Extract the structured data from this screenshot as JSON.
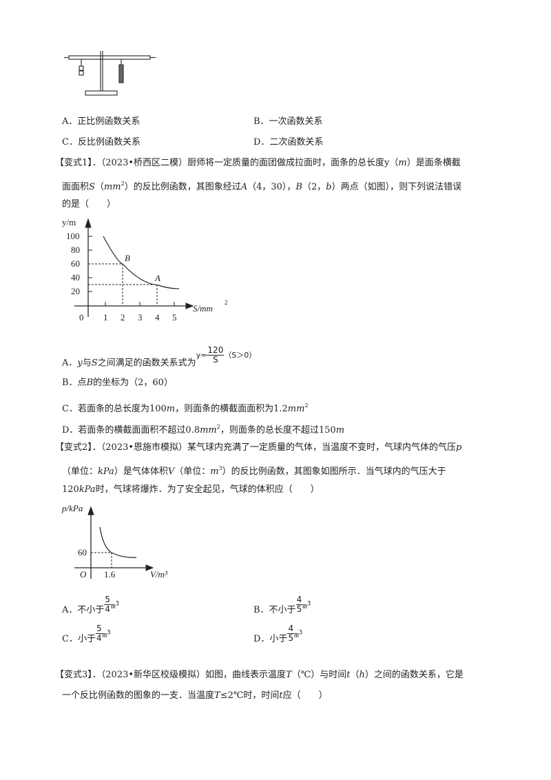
{
  "q0": {
    "options": [
      [
        [
          "A．正比例函数关系",
          ""
        ]
      ],
      [
        [
          "B．一次函数关系",
          ""
        ]
      ],
      [
        [
          "C．反比例函数关系",
          ""
        ]
      ],
      [
        [
          "D．二次函数关系",
          ""
        ]
      ]
    ]
  },
  "q1": {
    "lines": [
      [
        [
          "【变式1】．（2023•桥西区二模）厨师将一定质量的面团做成拉面时，面条的总长度",
          ""
        ],
        [
          "y",
          ""
        ],
        [
          "（",
          ""
        ],
        [
          "m",
          "i"
        ],
        [
          "）是面条横截",
          ""
        ]
      ],
      [
        [
          "面面积",
          ""
        ],
        [
          "S",
          "i"
        ],
        [
          "（",
          ""
        ],
        [
          "mm",
          "i"
        ],
        [
          "2",
          "sup"
        ],
        [
          "）的反比例函数，其图象经过",
          ""
        ],
        [
          "A",
          "i"
        ],
        [
          "（4，30），",
          ""
        ],
        [
          "B",
          "i"
        ],
        [
          "（2，",
          ""
        ],
        [
          "b",
          "i"
        ],
        [
          "）两点（如图），则下列说法错误",
          ""
        ]
      ],
      [
        [
          "的是（　　）",
          ""
        ]
      ]
    ],
    "options": [
      [
        [
          "A．",
          ""
        ],
        [
          "y",
          "i"
        ],
        [
          "与",
          ""
        ],
        [
          "S",
          "i"
        ],
        [
          "之间满足的函数关系式为",
          ""
        ]
      ],
      [
        [
          "B．点",
          ""
        ],
        [
          "B",
          "i"
        ],
        [
          "的坐标为（2，60）",
          ""
        ]
      ],
      [
        [
          "C．若面条的总长度为100",
          ""
        ],
        [
          "m",
          "i"
        ],
        [
          "，则面条的横截面面积为1.2",
          ""
        ],
        [
          "mm",
          "i"
        ],
        [
          "2",
          "sup"
        ]
      ],
      [
        [
          "D．若面条的横截面面积不超过0.8",
          ""
        ],
        [
          "mm",
          "i"
        ],
        [
          "2",
          "sup"
        ],
        [
          "，则面条的总长度不超过150",
          ""
        ],
        [
          "m",
          "i"
        ]
      ]
    ],
    "formula": {
      "lhs": "y=",
      "num": "120",
      "den": "S",
      "cond": "（S＞0）"
    },
    "graph": {
      "ylabel": "y/m",
      "xlabel": "S/mm",
      "xlabel_sup": "2",
      "yticks": [
        "100",
        "80",
        "60",
        "40",
        "20"
      ],
      "xticks": [
        "0",
        "1",
        "2",
        "3",
        "4",
        "5"
      ],
      "pointA": "A",
      "pointB": "B"
    }
  },
  "q2": {
    "lines": [
      [
        [
          "【变式2】．（2023•恩施市模拟）某气球内充满了一定质量的气体，当温度不变时，气球内气体的气压",
          ""
        ],
        [
          "p",
          "i"
        ]
      ],
      [
        [
          "（单位：",
          ""
        ],
        [
          "kPa",
          "i"
        ],
        [
          "）是气体体积",
          ""
        ],
        [
          "V",
          "i"
        ],
        [
          "（单位：",
          ""
        ],
        [
          "m",
          "i"
        ],
        [
          "3",
          "sup"
        ],
        [
          "）的反比例函数，其图象如图所示．当气球内的气压大于",
          ""
        ]
      ],
      [
        [
          "120",
          ""
        ],
        [
          "kPa",
          "i"
        ],
        [
          "时，气球将爆炸．为了安全起见，气球的体积应（　　）",
          ""
        ]
      ]
    ],
    "graph": {
      "ylabel": "p/kPa",
      "xlabel": "V/m³",
      "ytick": "60",
      "xtick": "1.6",
      "origin": "O"
    },
    "options": [
      {
        "label": "A．不小于",
        "num": "5",
        "den": "4",
        "unit": "m",
        "sup": "3"
      },
      {
        "label": "B．不小于",
        "num": "4",
        "den": "5",
        "unit": "m",
        "sup": "3"
      },
      {
        "label": "C．小于",
        "num": "5",
        "den": "4",
        "unit": "m",
        "sup": "3"
      },
      {
        "label": "D．小于",
        "num": "4",
        "den": "5",
        "unit": "m",
        "sup": "3"
      }
    ]
  },
  "q3": {
    "lines": [
      [
        [
          "【变式3】．（2023•新华区校级模拟）如图，曲线表示温度",
          ""
        ],
        [
          "T",
          "i"
        ],
        [
          "（℃）与时间",
          ""
        ],
        [
          "t",
          "i"
        ],
        [
          "（",
          ""
        ],
        [
          "h",
          "i"
        ],
        [
          "）之间的函数关系，它是",
          ""
        ]
      ],
      [
        [
          "一个反比例函数的图象的一支．当温度",
          ""
        ],
        [
          "T",
          "i"
        ],
        [
          "≤2℃时，时间",
          ""
        ],
        [
          "t",
          "i"
        ],
        [
          "应（　　）",
          ""
        ]
      ]
    ]
  }
}
